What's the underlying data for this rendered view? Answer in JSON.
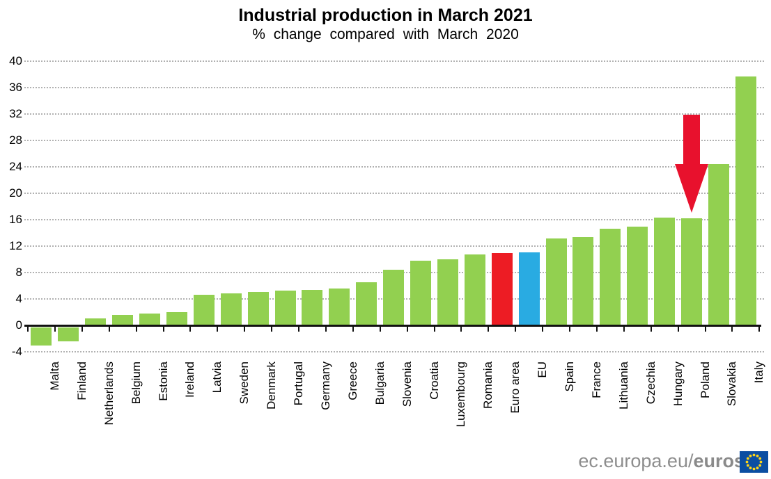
{
  "chart_data": {
    "type": "bar",
    "title": "Industrial production in March 2021",
    "subtitle": "% change compared with March 2020",
    "xlabel": "",
    "ylabel": "",
    "ylim": [
      -4,
      40
    ],
    "yticks": [
      40,
      36,
      32,
      28,
      24,
      20,
      16,
      12,
      8,
      4,
      0,
      -4
    ],
    "grid": "horizontal-dotted",
    "legend": "none",
    "categories": [
      "Malta",
      "Finland",
      "Netherlands",
      "Belgium",
      "Estonia",
      "Ireland",
      "Latvia",
      "Sweden",
      "Denmark",
      "Portugal",
      "Germany",
      "Greece",
      "Bulgaria",
      "Slovenia",
      "Croatia",
      "Luxembourg",
      "Romania",
      "Euro area",
      "EU",
      "Spain",
      "France",
      "Lithuania",
      "Czechia",
      "Hungary",
      "Poland",
      "Slovakia",
      "Italy"
    ],
    "values": [
      -2.7,
      -2.1,
      1.1,
      1.6,
      1.8,
      2.0,
      4.6,
      4.8,
      5.0,
      5.3,
      5.4,
      5.6,
      6.5,
      8.4,
      9.8,
      10.0,
      10.7,
      10.9,
      11.0,
      13.2,
      13.4,
      14.6,
      14.9,
      16.3,
      16.2,
      24.4,
      37.7
    ],
    "bar_color_keys": [
      "green",
      "green",
      "green",
      "green",
      "green",
      "green",
      "green",
      "green",
      "green",
      "green",
      "green",
      "green",
      "green",
      "green",
      "green",
      "green",
      "green",
      "red",
      "blue",
      "green",
      "green",
      "green",
      "green",
      "green",
      "green",
      "green",
      "green"
    ],
    "palette": {
      "green": "#92d050",
      "red": "#ed1c24",
      "blue": "#29abe2"
    },
    "annotation": {
      "shape": "down-arrow",
      "target_category": "Poland",
      "color": "#e8112d"
    }
  },
  "footer": {
    "url_regular": "ec.europa.eu/",
    "url_bold": "eurostat",
    "flag_icon": "eu-flag",
    "flag_blue": "#0b4ea2",
    "flag_star_color": "#ffd617"
  },
  "style": {
    "gridline_color": "#b1b1b1",
    "axis_color": "#111111",
    "text_color": "#000000",
    "footer_text_color": "#8e8e8e"
  }
}
